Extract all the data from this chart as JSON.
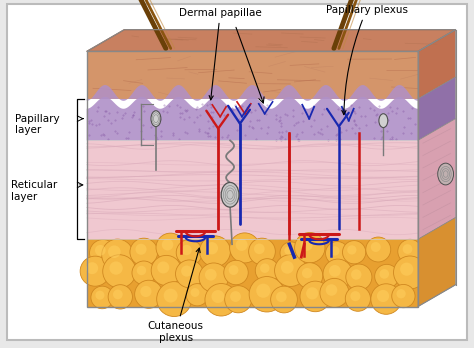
{
  "background_color": "#e8e8e8",
  "border_color": "#bbbbbb",
  "labels": {
    "dermal_papillae": "Dermal papillae",
    "papillary_plexus": "Papillary plexus",
    "papillary_layer": "Papillary\nlayer",
    "reticular_layer": "Reticular\nlayer",
    "cutaneous_plexus": "Cutaneous\nplexus"
  },
  "colors": {
    "epidermis": "#d4956a",
    "epidermis_dark": "#c07858",
    "papillary": "#b090c8",
    "papillary_dark": "#9070aa",
    "reticular": "#f0c8d0",
    "reticular_fiber": "#d8a8b8",
    "hypodermis": "#f0a030",
    "fat_cell": "#f5b845",
    "fat_cell_edge": "#d08820",
    "side_epi": "#c07858",
    "side_ret": "#d8a0b8",
    "side_bot": "#e09030",
    "top_face": "#c88060",
    "hair": "#7a5010",
    "artery": "#cc1818",
    "vein": "#1828b0",
    "nerve": "#7a7a7a",
    "nerve_dark": "#505050"
  }
}
